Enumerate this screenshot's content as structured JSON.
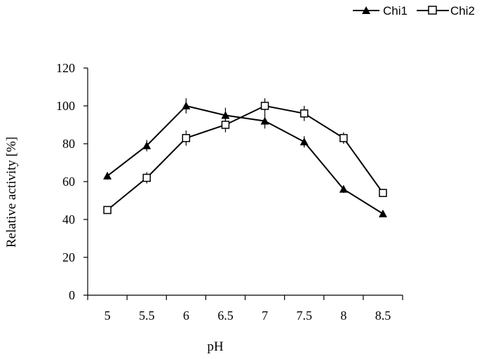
{
  "chart_data": {
    "type": "line",
    "x": [
      "5",
      "5.5",
      "6",
      "6.5",
      "7",
      "7.5",
      "8",
      "8.5"
    ],
    "series": [
      {
        "name": "Chi1",
        "marker": "triangle-filled",
        "values": [
          63,
          79,
          100,
          95,
          92,
          81,
          56,
          43
        ],
        "errors": [
          2,
          3,
          4,
          4,
          4,
          3,
          2,
          1
        ]
      },
      {
        "name": "Chi2",
        "marker": "square-open",
        "values": [
          45,
          62,
          83,
          90,
          100,
          96,
          83,
          54
        ],
        "errors": [
          1,
          3,
          4,
          4,
          4,
          4,
          3,
          2
        ]
      }
    ],
    "xlabel": "pH",
    "ylabel": "Relative activity  [%]",
    "ylim": [
      0,
      120
    ],
    "yticks": [
      "0",
      "20",
      "40",
      "60",
      "80",
      "100",
      "120"
    ],
    "grid": false,
    "legend_position": "top-right",
    "colors": {
      "line": "#000000",
      "background": "#ffffff"
    }
  }
}
